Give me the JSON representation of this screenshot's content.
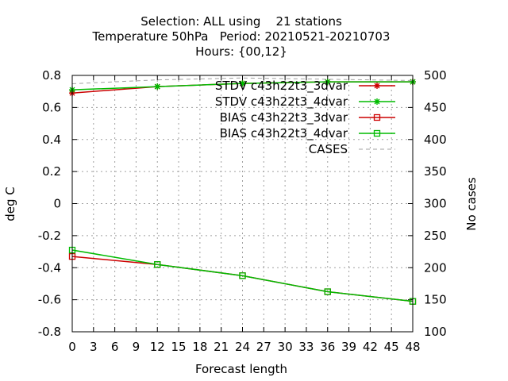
{
  "chart_data": {
    "type": "line",
    "title_lines": [
      "Selection: ALL using    21 stations",
      "Temperature 50hPa   Period: 20210521-20210703",
      "Hours: {00,12}"
    ],
    "xlabel": "Forecast length",
    "ylabel": "deg C",
    "y2label": "No cases",
    "xlim": [
      0,
      48
    ],
    "ylim": [
      -0.8,
      0.8
    ],
    "y2lim": [
      100,
      500
    ],
    "xticks": [
      0,
      3,
      6,
      9,
      12,
      15,
      18,
      21,
      24,
      27,
      30,
      33,
      36,
      39,
      42,
      45,
      48
    ],
    "yticks": [
      "-0.8",
      "-0.6",
      "-0.4",
      "-0.2",
      "0",
      "0.2",
      "0.4",
      "0.6",
      "0.8"
    ],
    "y2ticks": [
      100,
      150,
      200,
      250,
      300,
      350,
      400,
      450,
      500
    ],
    "grid": true,
    "legend_position": "top-right",
    "series": [
      {
        "name": "STDV c43h22t3_3dvar",
        "color": "#cc0000",
        "marker": "star",
        "axis": "y",
        "x": [
          0,
          12,
          24,
          36,
          48
        ],
        "y": [
          0.69,
          0.73,
          0.75,
          0.76,
          0.76
        ]
      },
      {
        "name": "STDV c43h22t3_4dvar",
        "color": "#00bb00",
        "marker": "star",
        "axis": "y",
        "x": [
          0,
          12,
          24,
          36,
          48
        ],
        "y": [
          0.71,
          0.73,
          0.75,
          0.76,
          0.76
        ]
      },
      {
        "name": "BIAS c43h22t3_3dvar",
        "color": "#cc0000",
        "marker": "square",
        "axis": "y",
        "x": [
          0,
          12,
          24,
          36,
          48
        ],
        "y": [
          -0.33,
          -0.38,
          -0.45,
          -0.55,
          -0.61
        ]
      },
      {
        "name": "BIAS c43h22t3_4dvar",
        "color": "#00bb00",
        "marker": "square",
        "axis": "y",
        "x": [
          0,
          12,
          24,
          36,
          48
        ],
        "y": [
          -0.29,
          -0.38,
          -0.45,
          -0.55,
          -0.61
        ]
      },
      {
        "name": "CASES",
        "color": "#a0a0a0",
        "marker": "none",
        "dash": "dashed",
        "axis": "y2",
        "x": [
          0,
          12,
          24,
          36,
          48
        ],
        "y": [
          487,
          493,
          496,
          494,
          492
        ]
      }
    ]
  }
}
